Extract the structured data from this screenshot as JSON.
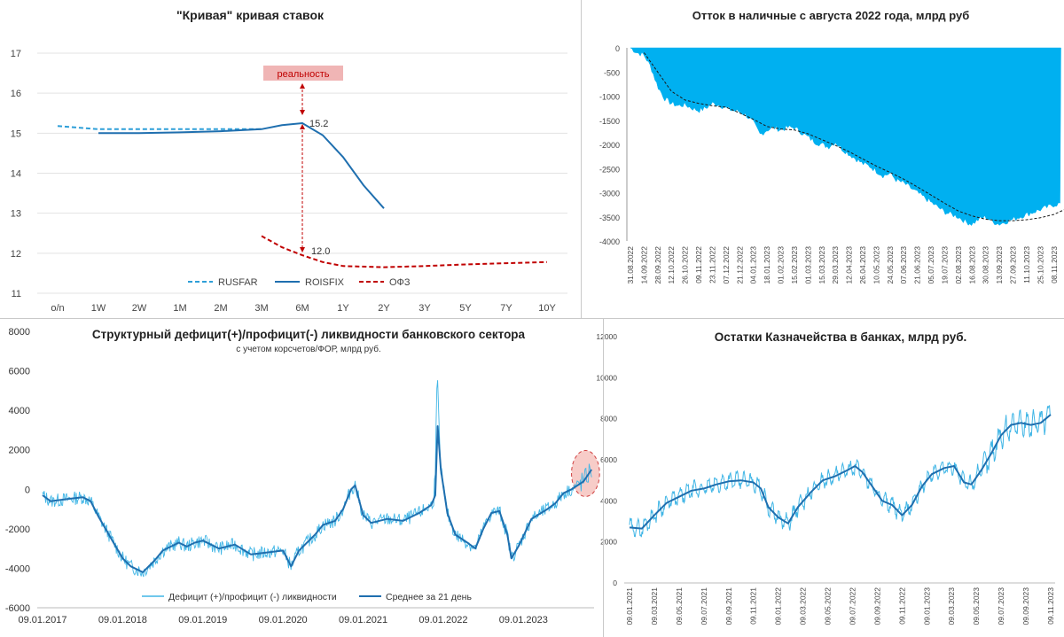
{
  "charts": [
    {
      "id": "rate-curve",
      "type": "line",
      "title": "\"Кривая\" кривая ставок",
      "categories": [
        "o/n",
        "1W",
        "2W",
        "1M",
        "2M",
        "3M",
        "6M",
        "1Y",
        "2Y",
        "3Y",
        "5Y",
        "7Y",
        "10Y"
      ],
      "ylim": [
        11,
        17
      ],
      "yticks": [
        "11",
        "12",
        "13",
        "14",
        "15",
        "16",
        "17"
      ],
      "grid": true,
      "legend_position": "bottom",
      "series": [
        {
          "name": "RUSFAR",
          "color": "#2e9fd8",
          "style": "dashed",
          "points": [
            [
              0,
              15.18
            ],
            [
              1,
              15.1
            ],
            [
              2,
              15.1
            ],
            [
              3,
              15.1
            ],
            [
              4,
              15.1
            ],
            [
              5,
              15.1
            ]
          ]
        },
        {
          "name": "ROISFIX",
          "color": "#1f6faf",
          "style": "solid",
          "points": [
            [
              1,
              15.0
            ],
            [
              2,
              15.0
            ],
            [
              3,
              15.02
            ],
            [
              4,
              15.05
            ],
            [
              5,
              15.1
            ],
            [
              5.5,
              15.2
            ],
            [
              6,
              15.25
            ],
            [
              6.5,
              14.95
            ],
            [
              7,
              14.4
            ],
            [
              7.5,
              13.7
            ],
            [
              8,
              13.12
            ]
          ]
        },
        {
          "name": "ОФЗ",
          "color": "#c00000",
          "style": "dashed",
          "points": [
            [
              5,
              12.43
            ],
            [
              5.5,
              12.15
            ],
            [
              6,
              11.95
            ],
            [
              6.5,
              11.78
            ],
            [
              7,
              11.68
            ],
            [
              8,
              11.65
            ],
            [
              9,
              11.68
            ],
            [
              10,
              11.72
            ],
            [
              11,
              11.75
            ],
            [
              12,
              11.78
            ]
          ]
        }
      ],
      "annotations": {
        "label": "реальность",
        "top_value": "15.2",
        "bottom_value": "12.0"
      }
    },
    {
      "id": "cash-outflow",
      "type": "area",
      "title": "Отток в наличные с августа 2022 года, млрд руб",
      "ylim": [
        -4000,
        0
      ],
      "yticks": [
        "0",
        "-500",
        "-1000",
        "-1500",
        "-2000",
        "-2500",
        "-3000",
        "-3500",
        "-4000"
      ],
      "xticks": [
        "31.08.2022",
        "14.09.2022",
        "28.09.2022",
        "12.10.2022",
        "26.10.2022",
        "09.11.2022",
        "23.11.2022",
        "07.12.2022",
        "21.12.2022",
        "04.01.2023",
        "18.01.2023",
        "01.02.2023",
        "15.02.2023",
        "01.03.2023",
        "15.03.2023",
        "29.03.2023",
        "12.04.2023",
        "26.04.2023",
        "10.05.2023",
        "24.05.2023",
        "07.06.2023",
        "21.06.2023",
        "05.07.2023",
        "19.07.2023",
        "02.08.2023",
        "16.08.2023",
        "30.08.2023",
        "13.09.2023",
        "27.09.2023",
        "11.10.2023",
        "25.10.2023",
        "08.11.2023"
      ],
      "area_color": "#00b0f0",
      "trend_color": "#1a1a1a",
      "area_points": [
        [
          0,
          0
        ],
        [
          0.5,
          -100
        ],
        [
          1,
          -150
        ],
        [
          1.5,
          -400
        ],
        [
          2,
          -800
        ],
        [
          2.5,
          -1050
        ],
        [
          3,
          -1150
        ],
        [
          3.5,
          -1200
        ],
        [
          4,
          -1180
        ],
        [
          4.5,
          -1250
        ],
        [
          5,
          -1300
        ],
        [
          5.5,
          -1250
        ],
        [
          6,
          -1150
        ],
        [
          6.5,
          -1180
        ],
        [
          7,
          -1250
        ],
        [
          7.5,
          -1300
        ],
        [
          8,
          -1320
        ],
        [
          8.5,
          -1400
        ],
        [
          9,
          -1550
        ],
        [
          9.5,
          -1800
        ],
        [
          10,
          -1700
        ],
        [
          10.5,
          -1650
        ],
        [
          11,
          -1700
        ],
        [
          11.5,
          -1650
        ],
        [
          12,
          -1650
        ],
        [
          12.5,
          -1750
        ],
        [
          13,
          -1850
        ],
        [
          13.5,
          -1950
        ],
        [
          14,
          -2000
        ],
        [
          14.5,
          -2050
        ],
        [
          15,
          -1950
        ],
        [
          15.5,
          -2100
        ],
        [
          16,
          -2200
        ],
        [
          16.5,
          -2300
        ],
        [
          17,
          -2400
        ],
        [
          17.5,
          -2450
        ],
        [
          18,
          -2550
        ],
        [
          18.5,
          -2650
        ],
        [
          19,
          -2600
        ],
        [
          19.5,
          -2750
        ],
        [
          20,
          -2800
        ],
        [
          20.5,
          -2900
        ],
        [
          21,
          -3000
        ],
        [
          21.5,
          -3100
        ],
        [
          22,
          -3200
        ],
        [
          22.5,
          -3300
        ],
        [
          23,
          -3400
        ],
        [
          23.5,
          -3450
        ],
        [
          24,
          -3500
        ],
        [
          24.5,
          -3600
        ],
        [
          25,
          -3650
        ],
        [
          25.5,
          -3550
        ],
        [
          26,
          -3500
        ],
        [
          26.5,
          -3600
        ],
        [
          27,
          -3650
        ],
        [
          27.5,
          -3600
        ],
        [
          28,
          -3550
        ],
        [
          28.5,
          -3500
        ],
        [
          29,
          -3450
        ],
        [
          29.5,
          -3400
        ],
        [
          30,
          -3350
        ],
        [
          30.5,
          -3300
        ],
        [
          31,
          -3250
        ],
        [
          31.5,
          -3220
        ]
      ],
      "trend_points": [
        [
          1,
          -100
        ],
        [
          2,
          -500
        ],
        [
          3,
          -900
        ],
        [
          4,
          -1080
        ],
        [
          5,
          -1150
        ],
        [
          6,
          -1200
        ],
        [
          7,
          -1230
        ],
        [
          8,
          -1350
        ],
        [
          9,
          -1480
        ],
        [
          10,
          -1630
        ],
        [
          11,
          -1680
        ],
        [
          12,
          -1700
        ],
        [
          13,
          -1780
        ],
        [
          14,
          -1900
        ],
        [
          15,
          -2020
        ],
        [
          16,
          -2150
        ],
        [
          17,
          -2300
        ],
        [
          18,
          -2450
        ],
        [
          19,
          -2580
        ],
        [
          20,
          -2720
        ],
        [
          21,
          -2880
        ],
        [
          22,
          -3050
        ],
        [
          23,
          -3220
        ],
        [
          24,
          -3380
        ],
        [
          25,
          -3480
        ],
        [
          26,
          -3550
        ],
        [
          27,
          -3580
        ],
        [
          28,
          -3580
        ],
        [
          29,
          -3560
        ],
        [
          30,
          -3520
        ],
        [
          31,
          -3450
        ],
        [
          32,
          -3320
        ]
      ]
    },
    {
      "id": "liquidity",
      "type": "line",
      "title": "Структурный дефицит(+)/профицит(-) ликвидности банковского сектора",
      "subtitle": "с учетом корсчетов/ФОР, млрд руб.",
      "ylim": [
        -6000,
        8000
      ],
      "yticks": [
        "-6000",
        "-4000",
        "-2000",
        "0",
        "2000",
        "4000",
        "6000",
        "8000"
      ],
      "xticks": [
        "09.01.2017",
        "09.01.2018",
        "09.01.2019",
        "09.01.2020",
        "09.01.2021",
        "09.01.2022",
        "09.01.2023"
      ],
      "grid": false,
      "legend_position": "bottom",
      "series": [
        {
          "name": "Дефицит (+)/профицит (-) ликвидности",
          "color": "#41b6e6"
        },
        {
          "name": "Среднее за 21 день",
          "color": "#1f6faf"
        }
      ],
      "smooth_points": [
        [
          0,
          -300
        ],
        [
          0.1,
          -600
        ],
        [
          0.3,
          -500
        ],
        [
          0.5,
          -400
        ],
        [
          0.6,
          -600
        ],
        [
          0.7,
          -1400
        ],
        [
          0.8,
          -2100
        ],
        [
          0.9,
          -2800
        ],
        [
          1.0,
          -3500
        ],
        [
          1.1,
          -3900
        ],
        [
          1.25,
          -4200
        ],
        [
          1.4,
          -3600
        ],
        [
          1.5,
          -3100
        ],
        [
          1.7,
          -2700
        ],
        [
          1.8,
          -2900
        ],
        [
          1.9,
          -2700
        ],
        [
          2.0,
          -2600
        ],
        [
          2.2,
          -3000
        ],
        [
          2.4,
          -2800
        ],
        [
          2.6,
          -3300
        ],
        [
          2.8,
          -3200
        ],
        [
          3.0,
          -3100
        ],
        [
          3.1,
          -3900
        ],
        [
          3.2,
          -3100
        ],
        [
          3.4,
          -2300
        ],
        [
          3.5,
          -1800
        ],
        [
          3.65,
          -1600
        ],
        [
          3.75,
          -1000
        ],
        [
          3.85,
          0
        ],
        [
          3.9,
          200
        ],
        [
          4.0,
          -1300
        ],
        [
          4.1,
          -1700
        ],
        [
          4.3,
          -1500
        ],
        [
          4.5,
          -1600
        ],
        [
          4.7,
          -1200
        ],
        [
          4.85,
          -800
        ],
        [
          4.9,
          -300
        ],
        [
          4.93,
          3200
        ],
        [
          4.97,
          1000
        ],
        [
          5.05,
          -1200
        ],
        [
          5.15,
          -2300
        ],
        [
          5.3,
          -2700
        ],
        [
          5.4,
          -3000
        ],
        [
          5.5,
          -2000
        ],
        [
          5.6,
          -1200
        ],
        [
          5.7,
          -1100
        ],
        [
          5.8,
          -2300
        ],
        [
          5.85,
          -3500
        ],
        [
          5.95,
          -2800
        ],
        [
          6.1,
          -1500
        ],
        [
          6.3,
          -1000
        ],
        [
          6.4,
          -700
        ],
        [
          6.5,
          -200
        ],
        [
          6.6,
          0
        ],
        [
          6.75,
          400
        ],
        [
          6.85,
          1000
        ]
      ],
      "highlight": {
        "from": 6.6,
        "to": 6.95
      }
    },
    {
      "id": "treasury",
      "type": "line",
      "title": "Остатки Казначейства в банках, млрд руб.",
      "ylim": [
        0,
        12000
      ],
      "yticks": [
        "0",
        "2000",
        "4000",
        "6000",
        "8000",
        "10000",
        "12000"
      ],
      "xticks": [
        "09.01.2021",
        "09.03.2021",
        "09.05.2021",
        "09.07.2021",
        "09.09.2021",
        "09.11.2021",
        "09.01.2022",
        "09.03.2022",
        "09.05.2022",
        "09.07.2022",
        "09.09.2022",
        "09.11.2022",
        "09.01.2023",
        "09.03.2023",
        "09.05.2023",
        "09.07.2023",
        "09.09.2023",
        "09.11.2023"
      ],
      "grid": false,
      "series": [
        {
          "name": "",
          "color": "#41b6e6"
        },
        {
          "name": "",
          "color": "#1f6faf"
        }
      ],
      "smooth_points": [
        [
          0,
          2700
        ],
        [
          0.5,
          2650
        ],
        [
          1,
          3300
        ],
        [
          1.5,
          3900
        ],
        [
          2,
          4200
        ],
        [
          2.5,
          4500
        ],
        [
          3,
          4600
        ],
        [
          3.5,
          4800
        ],
        [
          4,
          4950
        ],
        [
          4.5,
          5000
        ],
        [
          5,
          4900
        ],
        [
          5.3,
          4600
        ],
        [
          5.6,
          3700
        ],
        [
          6,
          3200
        ],
        [
          6.4,
          2900
        ],
        [
          6.8,
          3700
        ],
        [
          7.3,
          4400
        ],
        [
          7.8,
          5000
        ],
        [
          8.3,
          5200
        ],
        [
          8.8,
          5500
        ],
        [
          9.1,
          5700
        ],
        [
          9.4,
          5400
        ],
        [
          9.8,
          4700
        ],
        [
          10.2,
          4000
        ],
        [
          10.6,
          3800
        ],
        [
          11,
          3300
        ],
        [
          11.4,
          3800
        ],
        [
          11.8,
          4700
        ],
        [
          12.2,
          5300
        ],
        [
          12.7,
          5600
        ],
        [
          13.1,
          5700
        ],
        [
          13.5,
          4900
        ],
        [
          13.8,
          4800
        ],
        [
          14.2,
          5500
        ],
        [
          14.6,
          6300
        ],
        [
          15.0,
          7200
        ],
        [
          15.4,
          7700
        ],
        [
          15.8,
          7800
        ],
        [
          16.2,
          7700
        ],
        [
          16.6,
          7800
        ],
        [
          17.0,
          8200
        ]
      ]
    }
  ]
}
